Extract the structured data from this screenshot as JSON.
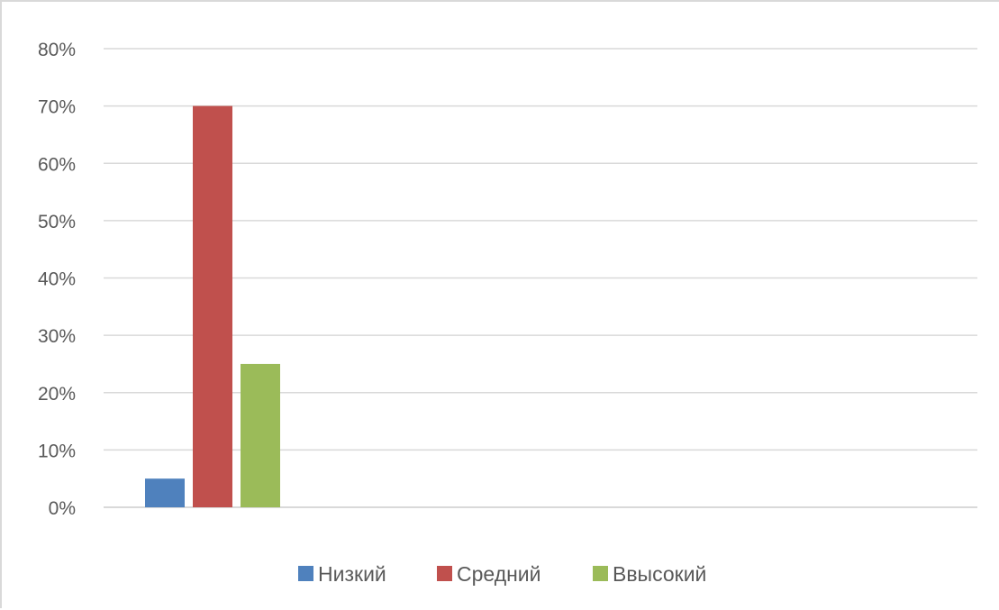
{
  "chart_data": {
    "type": "bar",
    "categories": [
      ""
    ],
    "series": [
      {
        "name": "Низкий",
        "values": [
          5
        ],
        "color": "#4f81bd"
      },
      {
        "name": "Средний",
        "values": [
          70
        ],
        "color": "#c0504d"
      },
      {
        "name": "Ввысокий",
        "values": [
          25
        ],
        "color": "#9bbb59"
      }
    ],
    "y_unit": "%",
    "ylim": [
      0,
      80
    ],
    "y_ticks": [
      0,
      10,
      20,
      30,
      40,
      50,
      60,
      70,
      80
    ],
    "y_tick_labels": [
      "0%",
      "10%",
      "20%",
      "30%",
      "40%",
      "50%",
      "60%",
      "70%",
      "80%"
    ],
    "grid": true,
    "legend_position": "bottom",
    "title": "",
    "xlabel": "",
    "ylabel": ""
  }
}
